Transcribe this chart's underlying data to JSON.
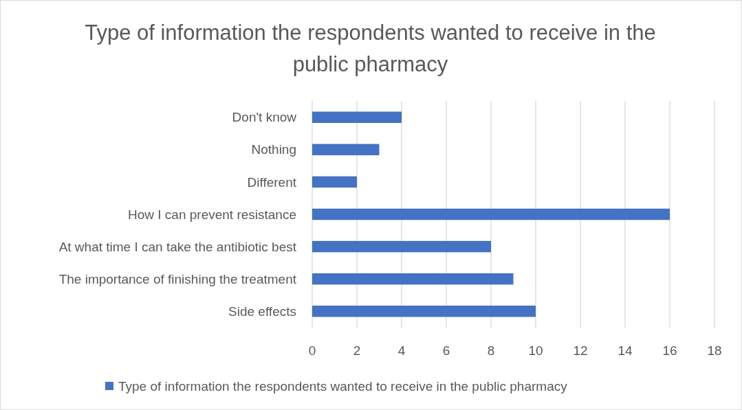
{
  "chart_data": {
    "type": "bar",
    "orientation": "horizontal",
    "title": "Type of information the respondents wanted to receive in the public pharmacy",
    "categories": [
      "Don't know",
      "Nothing",
      "Different",
      "How I can prevent resistance",
      "At what time I can take the antibiotic best",
      "The importance of finishing the treatment",
      "Side effects"
    ],
    "series": [
      {
        "name": "Type of information the respondents wanted to receive in the public pharmacy",
        "color": "#4472c4",
        "values": [
          4,
          3,
          2,
          16,
          8,
          9,
          10
        ]
      }
    ],
    "xlim": [
      0,
      18
    ],
    "xticks": [
      0,
      2,
      4,
      6,
      8,
      10,
      12,
      14,
      16,
      18
    ],
    "grid": "x",
    "legend": "bottom"
  }
}
